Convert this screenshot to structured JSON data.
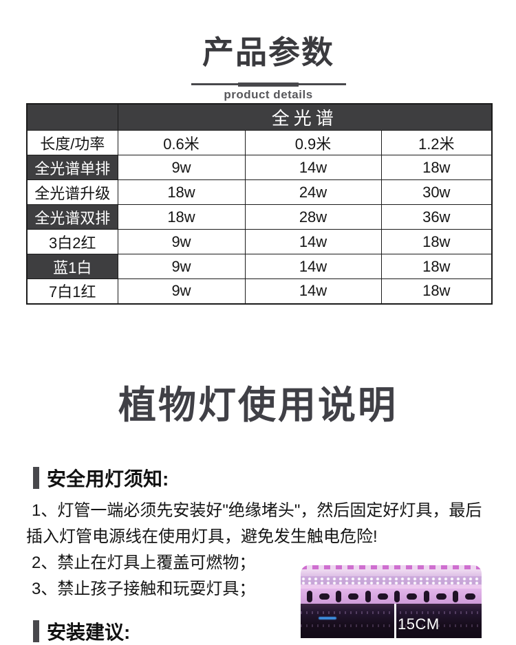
{
  "page": {
    "title": "产品参数",
    "subtitle": "product details"
  },
  "table": {
    "spectrum_header": "全光谱",
    "length_row": {
      "label": "长度/功率",
      "cols": [
        "0.6米",
        "0.9米",
        "1.2米"
      ]
    },
    "rows": [
      {
        "label": "全光谱单排",
        "dark": true,
        "values": [
          "9w",
          "14w",
          "18w"
        ]
      },
      {
        "label": "全光谱升级",
        "dark": false,
        "values": [
          "18w",
          "24w",
          "30w"
        ]
      },
      {
        "label": "全光谱双排",
        "dark": true,
        "values": [
          "18w",
          "28w",
          "36w"
        ]
      },
      {
        "label": "3白2红",
        "dark": false,
        "values": [
          "9w",
          "14w",
          "18w"
        ]
      },
      {
        "label": "蓝1白",
        "dark": true,
        "values": [
          "9w",
          "14w",
          "18w"
        ]
      },
      {
        "label": "7白1红",
        "dark": false,
        "values": [
          "9w",
          "14w",
          "18w"
        ]
      }
    ]
  },
  "usage": {
    "heading": "植物灯使用说明",
    "safety": {
      "title": "安全用灯须知:",
      "items": [
        "1、灯管一端必须先安装好\"绝缘堵头\"，然后固定好灯具，最后插入灯管电源线在使用灯具，避免发生触电危险!",
        "2、禁止在灯具上覆盖可燃物；",
        "3、禁止孩子接触和玩耍灯具；"
      ]
    },
    "install": {
      "title": "安装建议:"
    }
  },
  "photo": {
    "dim_label": "15CM"
  },
  "colors": {
    "table_dark": "#3e3e40",
    "heading_gray": "#404046",
    "accent_bar": "#48484c",
    "subtitle_gray": "#57575b"
  }
}
